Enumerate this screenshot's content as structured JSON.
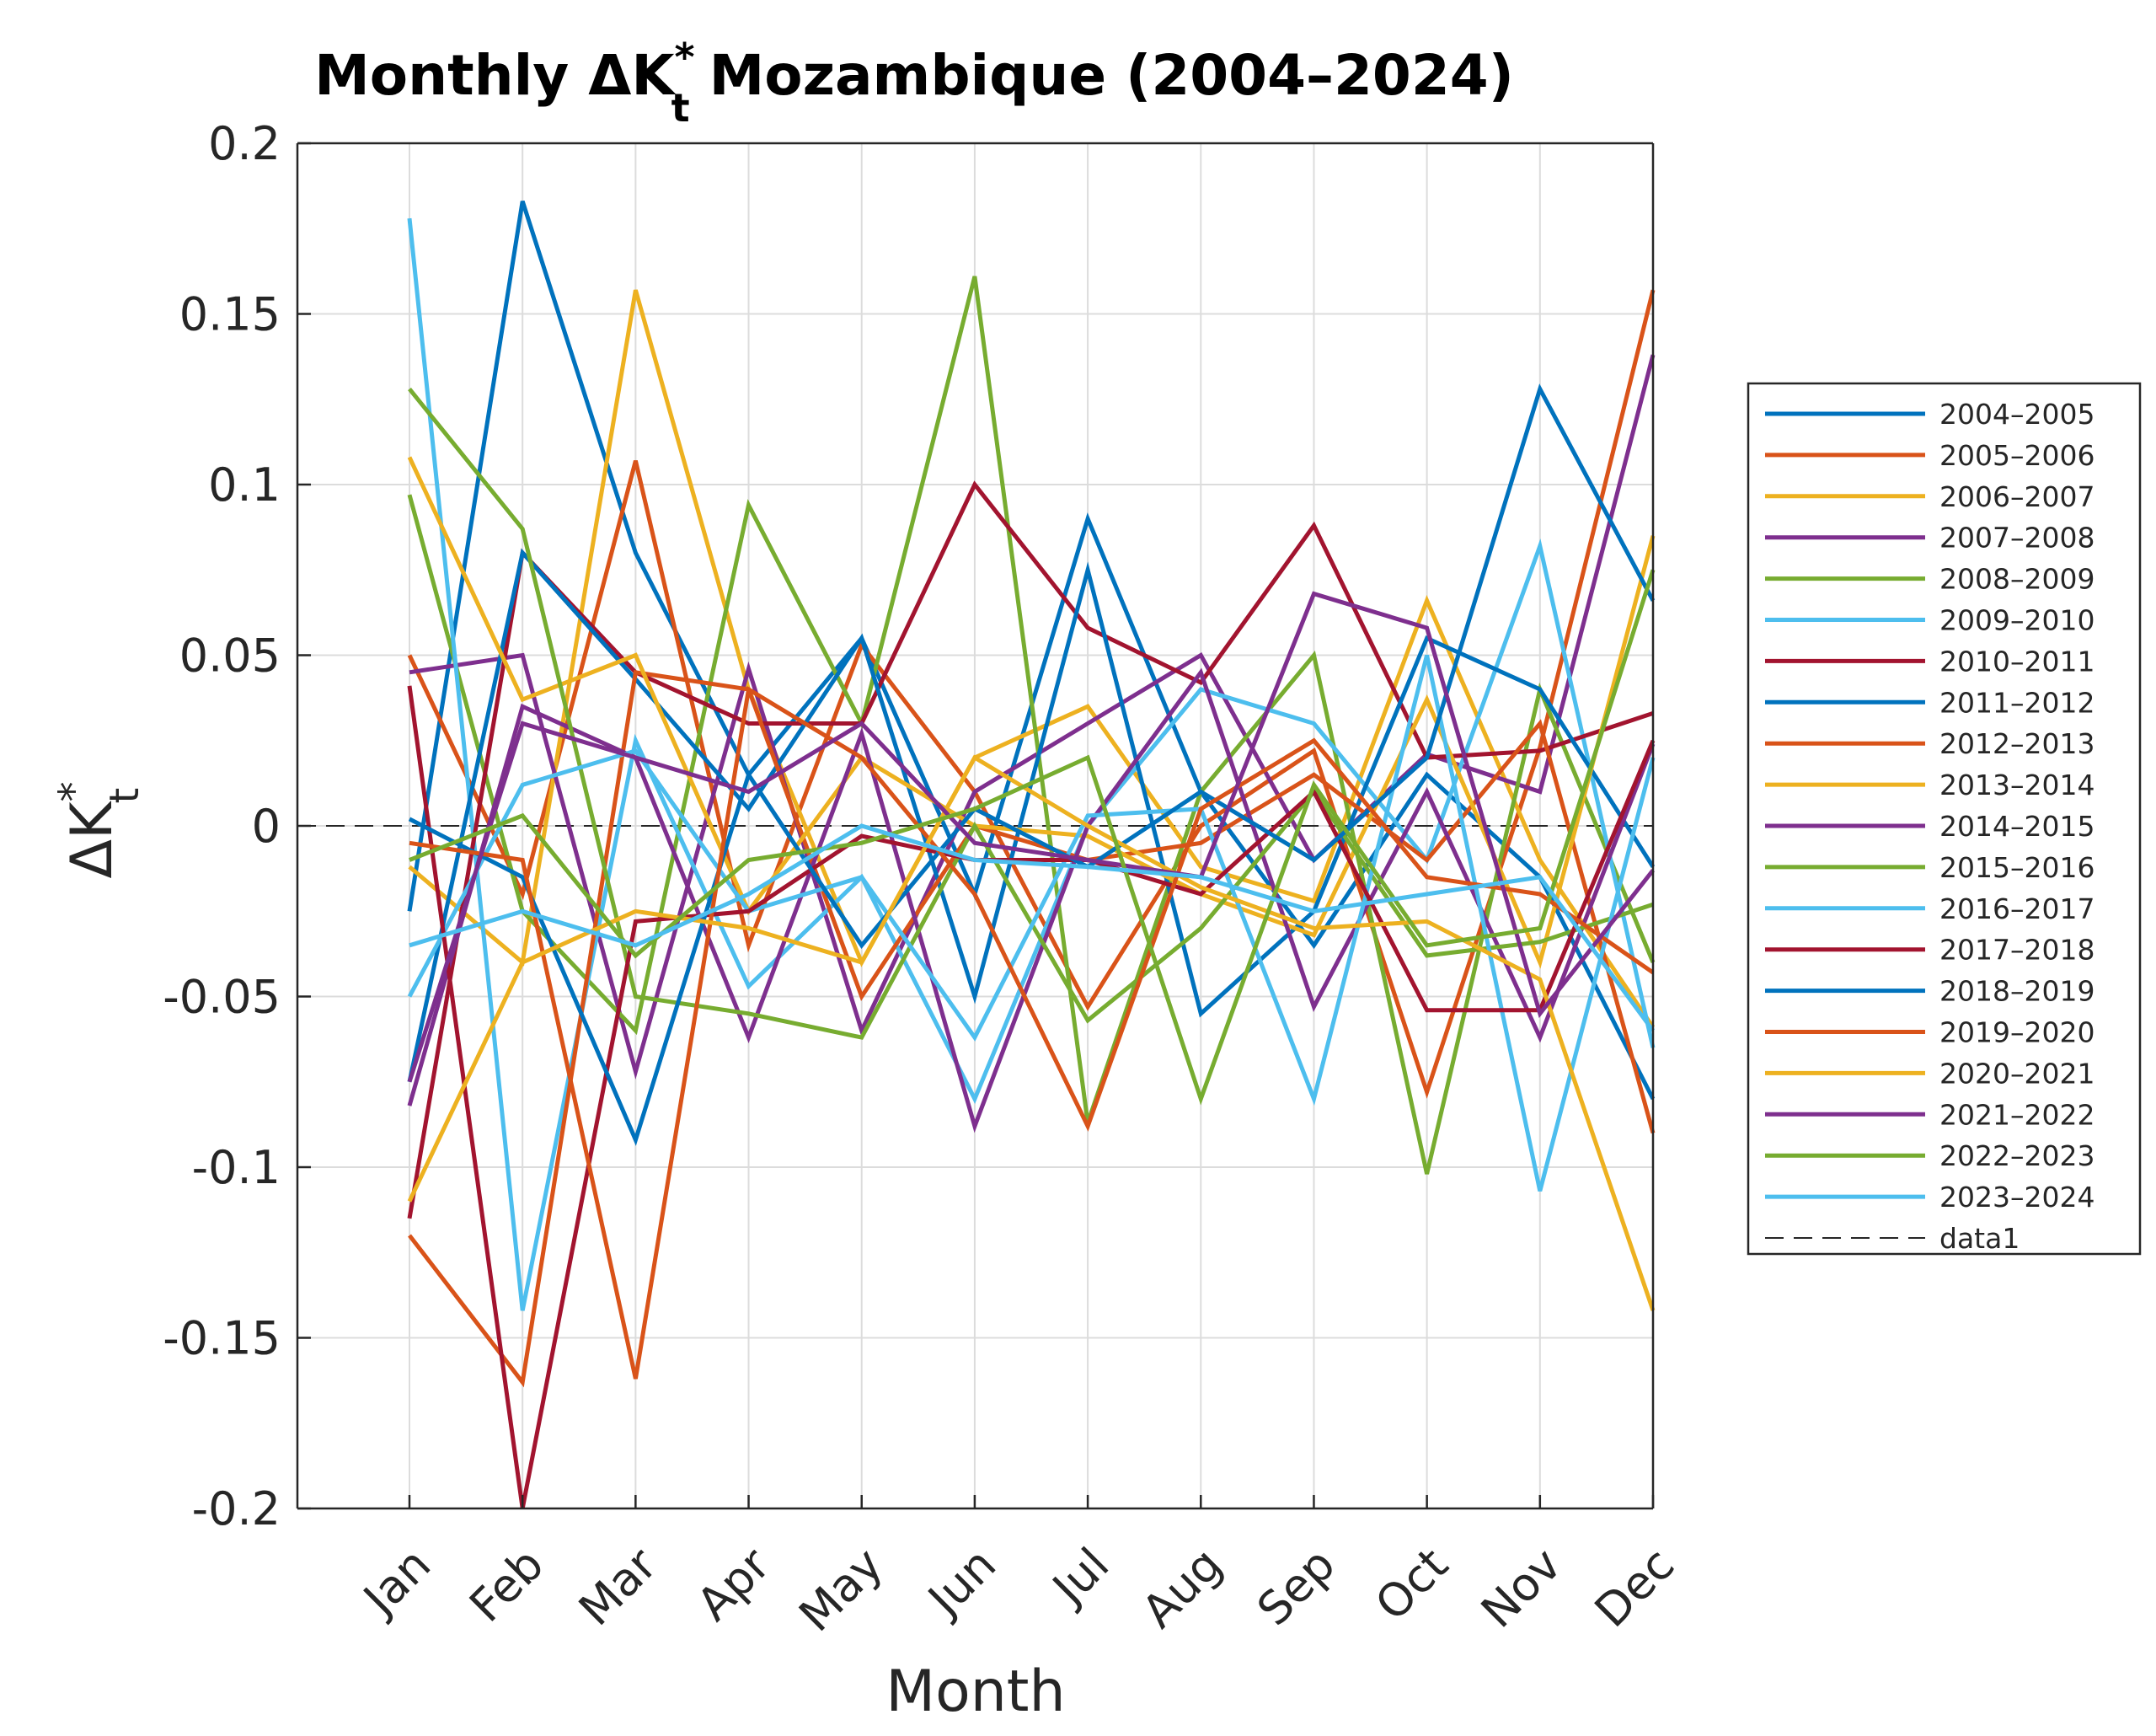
{
  "chart_data": {
    "type": "line",
    "title_prefix": "Monthly ",
    "title_symbol": "ΔK",
    "title_superscript": "*",
    "title_subscript": "t",
    "title_suffix": " Mozambique (2004–2024)",
    "xlabel": "Month",
    "ylabel_symbol": "ΔK",
    "ylabel_superscript": "*",
    "ylabel_subscript": "t",
    "categories": [
      "Jan",
      "Feb",
      "Mar",
      "Apr",
      "May",
      "Jun",
      "Jul",
      "Aug",
      "Sep",
      "Oct",
      "Nov",
      "Dec"
    ],
    "ylim": [
      -0.2,
      0.2
    ],
    "yticks": [
      0.2,
      0.15,
      0.1,
      0.05,
      0,
      -0.05,
      -0.1,
      -0.15,
      -0.2
    ],
    "ytick_labels": [
      "0.2",
      "0.15",
      "0.1",
      "0.05",
      "0",
      "-0.05",
      "-0.1",
      "-0.15",
      "-0.2"
    ],
    "grid": true,
    "legend_position": "outside-right",
    "reference_line": {
      "name": "data1",
      "value": 0,
      "style": "dashed",
      "color": "#262626"
    },
    "series": [
      {
        "name": "2004–2005",
        "color": "#0072BD",
        "values": [
          -0.025,
          0.183,
          0.08,
          0.015,
          0.055,
          -0.02,
          0.09,
          0.01,
          -0.035,
          0.015,
          -0.015,
          -0.08
        ]
      },
      {
        "name": "2005–2006",
        "color": "#D95319",
        "values": [
          0.05,
          -0.02,
          0.107,
          -0.035,
          0.053,
          0.01,
          -0.053,
          0.0,
          0.022,
          -0.078,
          0.023,
          0.157
        ]
      },
      {
        "name": "2006–2007",
        "color": "#EDB120",
        "values": [
          -0.012,
          -0.04,
          0.157,
          0.04,
          -0.04,
          0.02,
          0.035,
          -0.012,
          -0.022,
          0.066,
          -0.01,
          -0.059
        ]
      },
      {
        "name": "2007–2008",
        "color": "#7E2F8E",
        "values": [
          0.045,
          0.05,
          -0.072,
          0.046,
          -0.06,
          0.01,
          0.03,
          0.05,
          -0.01,
          0.021,
          0.01,
          0.138
        ]
      },
      {
        "name": "2008–2009",
        "color": "#77AC30",
        "values": [
          0.097,
          -0.025,
          -0.06,
          0.094,
          0.03,
          0.161,
          -0.087,
          0.01,
          0.05,
          -0.102,
          0.04,
          -0.04
        ]
      },
      {
        "name": "2009–2010",
        "color": "#4DBEEE",
        "values": [
          0.178,
          -0.142,
          0.025,
          -0.047,
          -0.015,
          -0.08,
          0.0,
          0.04,
          0.03,
          -0.01,
          0.082,
          -0.065
        ]
      },
      {
        "name": "2010–2011",
        "color": "#A2142F",
        "values": [
          -0.115,
          0.08,
          0.045,
          0.03,
          0.03,
          0.1,
          0.058,
          0.042,
          0.088,
          0.02,
          0.022,
          0.033
        ]
      },
      {
        "name": "2011–2012",
        "color": "#0072BD",
        "values": [
          -0.075,
          0.08,
          0.043,
          0.005,
          0.055,
          -0.05,
          0.075,
          -0.055,
          -0.025,
          0.055,
          0.04,
          -0.012
        ]
      },
      {
        "name": "2012–2013",
        "color": "#D95319",
        "values": [
          -0.12,
          -0.163,
          0.045,
          0.04,
          -0.05,
          0.0,
          -0.01,
          -0.005,
          0.015,
          -0.01,
          0.03,
          -0.09
        ]
      },
      {
        "name": "2013–2014",
        "color": "#EDB120",
        "values": [
          0.108,
          0.037,
          0.05,
          -0.025,
          0.02,
          0.0,
          -0.003,
          -0.02,
          -0.032,
          0.037,
          -0.04,
          0.085
        ]
      },
      {
        "name": "2014–2015",
        "color": "#7E2F8E",
        "values": [
          -0.082,
          0.035,
          0.02,
          -0.062,
          0.027,
          -0.088,
          0.0,
          0.045,
          -0.053,
          0.01,
          -0.062,
          0.024
        ]
      },
      {
        "name": "2015–2016",
        "color": "#77AC30",
        "values": [
          0.128,
          0.087,
          -0.05,
          -0.055,
          -0.062,
          0.0,
          -0.057,
          -0.03,
          0.01,
          -0.038,
          -0.034,
          -0.023
        ]
      },
      {
        "name": "2016–2017",
        "color": "#4DBEEE",
        "values": [
          -0.05,
          0.012,
          0.022,
          -0.025,
          -0.015,
          -0.062,
          0.003,
          0.005,
          -0.08,
          0.05,
          -0.107,
          0.02
        ]
      },
      {
        "name": "2017–2018",
        "color": "#A2142F",
        "values": [
          0.041,
          -0.2,
          -0.028,
          -0.025,
          -0.003,
          -0.01,
          -0.01,
          -0.02,
          0.01,
          -0.054,
          -0.054,
          0.025
        ]
      },
      {
        "name": "2018–2019",
        "color": "#0072BD",
        "values": [
          0.002,
          -0.015,
          -0.092,
          0.015,
          -0.035,
          0.005,
          -0.012,
          0.01,
          -0.01,
          0.02,
          0.128,
          0.066
        ]
      },
      {
        "name": "2019–2020",
        "color": "#D95319",
        "values": [
          -0.005,
          -0.01,
          -0.162,
          0.04,
          0.02,
          -0.02,
          -0.088,
          0.005,
          0.025,
          -0.015,
          -0.02,
          -0.043
        ]
      },
      {
        "name": "2020–2021",
        "color": "#EDB120",
        "values": [
          -0.11,
          -0.04,
          -0.025,
          -0.03,
          -0.04,
          0.02,
          0.0,
          -0.018,
          -0.03,
          -0.028,
          -0.045,
          -0.142
        ]
      },
      {
        "name": "2021–2022",
        "color": "#7E2F8E",
        "values": [
          -0.075,
          0.03,
          0.02,
          0.01,
          0.03,
          -0.005,
          -0.01,
          -0.015,
          0.068,
          0.058,
          -0.055,
          -0.013
        ]
      },
      {
        "name": "2022–2023",
        "color": "#77AC30",
        "values": [
          -0.01,
          0.003,
          -0.038,
          -0.01,
          -0.005,
          0.005,
          0.02,
          -0.08,
          0.012,
          -0.035,
          -0.03,
          0.075
        ]
      },
      {
        "name": "2023–2024",
        "color": "#4DBEEE",
        "values": [
          -0.035,
          -0.025,
          -0.035,
          -0.02,
          0.0,
          -0.01,
          -0.012,
          -0.015,
          -0.025,
          -0.02,
          -0.015,
          -0.06
        ]
      }
    ]
  }
}
